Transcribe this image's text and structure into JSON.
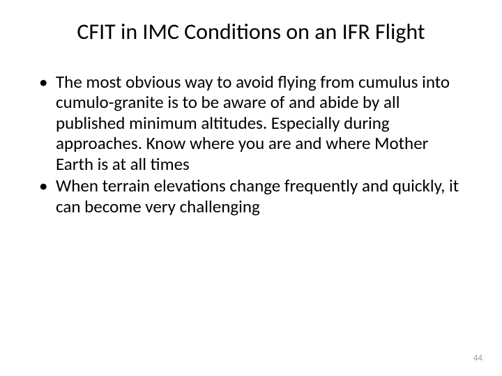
{
  "slide": {
    "title": "CFIT in IMC Conditions on an IFR Flight",
    "bullets": [
      "The most obvious way to avoid flying from cumulus into cumulo-granite is to be aware of and abide by all published minimum altitudes. Especially during approaches. Know where you are and where Mother Earth is at all times",
      "When terrain elevations change frequently and quickly, it can become very challenging"
    ],
    "page_number": "44"
  },
  "style": {
    "background_color": "#ffffff",
    "text_color": "#000000",
    "page_number_color": "#9a9a9a",
    "title_fontsize": 32,
    "body_fontsize": 25,
    "page_number_fontsize": 13,
    "font_family": "Calibri"
  }
}
